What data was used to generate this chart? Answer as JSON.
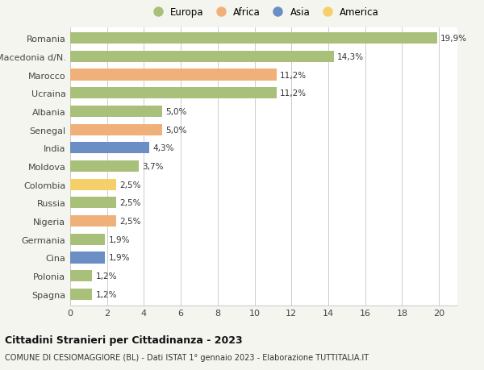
{
  "countries": [
    "Romania",
    "Macedonia d/N.",
    "Marocco",
    "Ucraina",
    "Albania",
    "Senegal",
    "India",
    "Moldova",
    "Colombia",
    "Russia",
    "Nigeria",
    "Germania",
    "Cina",
    "Polonia",
    "Spagna"
  ],
  "values": [
    19.9,
    14.3,
    11.2,
    11.2,
    5.0,
    5.0,
    4.3,
    3.7,
    2.5,
    2.5,
    2.5,
    1.9,
    1.9,
    1.2,
    1.2
  ],
  "labels": [
    "19,9%",
    "14,3%",
    "11,2%",
    "11,2%",
    "5,0%",
    "5,0%",
    "4,3%",
    "3,7%",
    "2,5%",
    "2,5%",
    "2,5%",
    "1,9%",
    "1,9%",
    "1,2%",
    "1,2%"
  ],
  "continents": [
    "Europa",
    "Europa",
    "Africa",
    "Europa",
    "Europa",
    "Africa",
    "Asia",
    "Europa",
    "America",
    "Europa",
    "Africa",
    "Europa",
    "Asia",
    "Europa",
    "Europa"
  ],
  "colors": {
    "Europa": "#a8c07a",
    "Africa": "#f0b07a",
    "Asia": "#6b8fc4",
    "America": "#f5d06a"
  },
  "legend_order": [
    "Europa",
    "Africa",
    "Asia",
    "America"
  ],
  "legend_colors": [
    "#a8c07a",
    "#f0b07a",
    "#6b8fc4",
    "#f5d06a"
  ],
  "xlim": [
    0,
    21
  ],
  "xticks": [
    0,
    2,
    4,
    6,
    8,
    10,
    12,
    14,
    16,
    18,
    20
  ],
  "title": "Cittadini Stranieri per Cittadinanza - 2023",
  "subtitle": "COMUNE DI CESIOMAGGIORE (BL) - Dati ISTAT 1° gennaio 2023 - Elaborazione TUTTITALIA.IT",
  "bg_color": "#f5f5f0",
  "bar_bg_color": "#ffffff",
  "grid_color": "#cccccc",
  "bar_height": 0.62
}
